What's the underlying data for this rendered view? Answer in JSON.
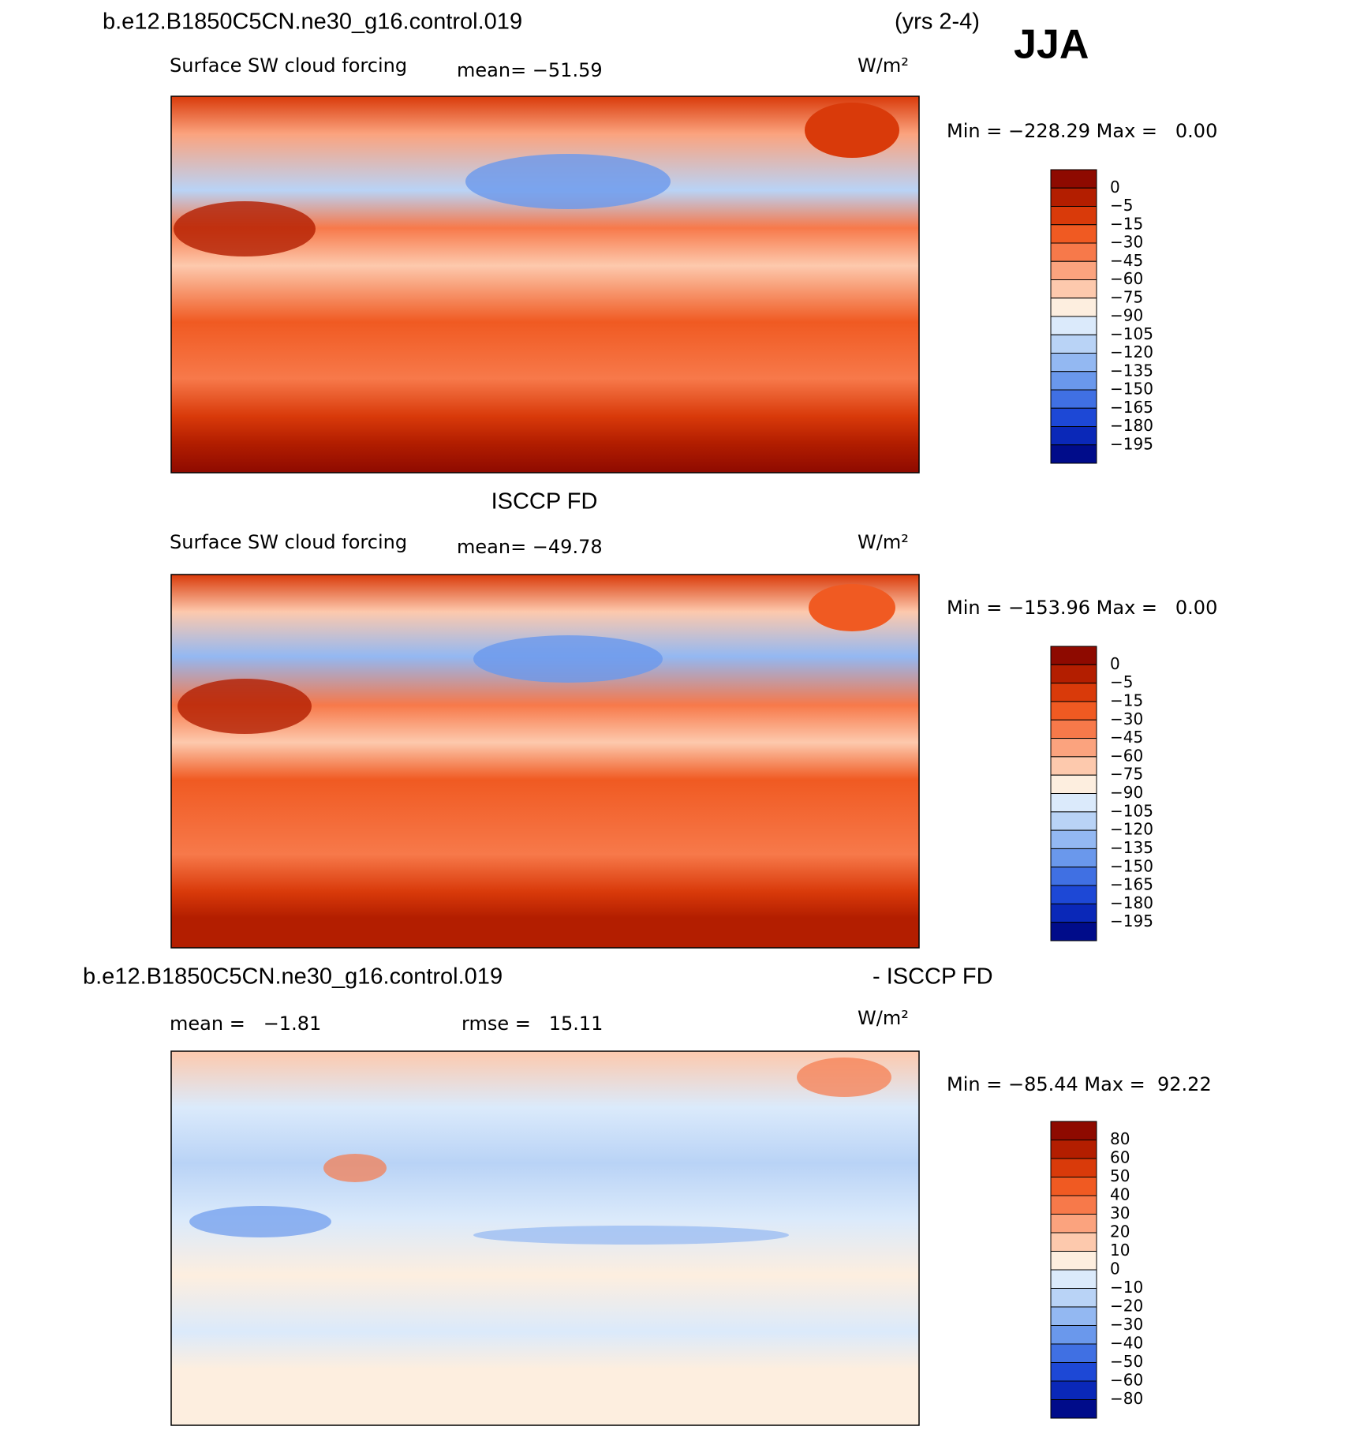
{
  "header": {
    "case": "b.e12.B1850C5CN.ne30_g16.control.019",
    "years": "(yrs 2-4)",
    "season": "JJA"
  },
  "panels": [
    {
      "variable": "Surface SW cloud forcing",
      "mean": "mean= −51.59",
      "units": "W/m²",
      "min_max": "Min = −228.29 Max =   0.00",
      "colorbar": {
        "labels": [
          "0",
          "−5",
          "−15",
          "−30",
          "−45",
          "−60",
          "−75",
          "−90",
          "−105",
          "−120",
          "−135",
          "−150",
          "−165",
          "−180",
          "−195"
        ],
        "colors": [
          "#8e0a00",
          "#b31e00",
          "#d93a0a",
          "#f05a22",
          "#f7794a",
          "#fba37e",
          "#fdc9ad",
          "#fdeedf",
          "#dbeafb",
          "#b9d3f6",
          "#93b8f2",
          "#6a98ec",
          "#4070e3",
          "#1d48d6",
          "#0a28b8",
          "#000c8a"
        ]
      }
    },
    {
      "title": "ISCCP FD",
      "variable": "Surface SW cloud forcing",
      "mean": "mean= −49.78",
      "units": "W/m²",
      "min_max": "Min = −153.96 Max =   0.00",
      "colorbar": {
        "labels": [
          "0",
          "−5",
          "−15",
          "−30",
          "−45",
          "−60",
          "−75",
          "−90",
          "−105",
          "−120",
          "−135",
          "−150",
          "−165",
          "−180",
          "−195"
        ],
        "colors": [
          "#8e0a00",
          "#b31e00",
          "#d93a0a",
          "#f05a22",
          "#f7794a",
          "#fba37e",
          "#fdc9ad",
          "#fdeedf",
          "#dbeafb",
          "#b9d3f6",
          "#93b8f2",
          "#6a98ec",
          "#4070e3",
          "#1d48d6",
          "#0a28b8",
          "#000c8a"
        ]
      }
    },
    {
      "title": "b.e12.B1850C5CN.ne30_g16.control.019",
      "title_right": "- ISCCP FD",
      "mean": "mean =   −1.81",
      "rmse": "rmse =   15.11",
      "units": "W/m²",
      "min_max": "Min = −85.44 Max =  92.22",
      "colorbar": {
        "labels": [
          "80",
          "60",
          "50",
          "40",
          "30",
          "20",
          "10",
          "0",
          "−10",
          "−20",
          "−30",
          "−40",
          "−50",
          "−60",
          "−80"
        ],
        "colors": [
          "#8e0a00",
          "#b31e00",
          "#d93a0a",
          "#f05a22",
          "#f7794a",
          "#fba37e",
          "#fdc9ad",
          "#fdeedf",
          "#dbeafb",
          "#b9d3f6",
          "#93b8f2",
          "#6a98ec",
          "#4070e3",
          "#1d48d6",
          "#0a28b8",
          "#000c8a"
        ]
      }
    }
  ]
}
